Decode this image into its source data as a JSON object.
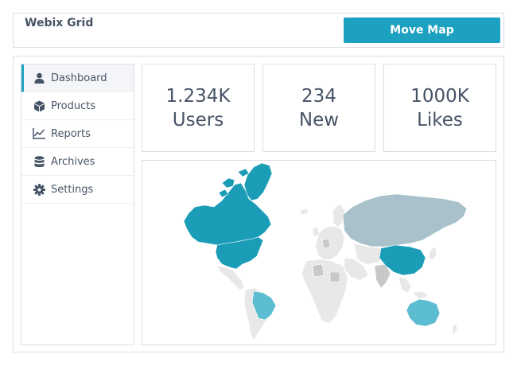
{
  "header": {
    "title": "Webix Grid",
    "move_button_label": "Move Map"
  },
  "sidebar": {
    "items": [
      {
        "label": "Dashboard",
        "icon": "user-icon",
        "active": true
      },
      {
        "label": "Products",
        "icon": "cube-icon",
        "active": false
      },
      {
        "label": "Reports",
        "icon": "line-chart-icon",
        "active": false
      },
      {
        "label": "Archives",
        "icon": "database-icon",
        "active": false
      },
      {
        "label": "Settings",
        "icon": "gear-icon",
        "active": false
      }
    ]
  },
  "stats": [
    {
      "value": "1.234K",
      "label": "Users"
    },
    {
      "value": "234",
      "label": "New"
    },
    {
      "value": "1000K",
      "label": "Likes"
    }
  ],
  "map": {
    "highlighted": [
      "Canada",
      "United States",
      "Greenland",
      "China",
      "Russia",
      "Brazil",
      "Australia"
    ],
    "colors": {
      "primary": "#1b9db8",
      "secondary": "#5cbcd0",
      "russia": "#a9c1ca",
      "neutral": "#c8c8c8",
      "land": "#e8e8e8",
      "border": "#ffffff"
    }
  },
  "colors": {
    "accent": "#1ca1c1",
    "text": "#475466",
    "border": "#dadee0"
  }
}
